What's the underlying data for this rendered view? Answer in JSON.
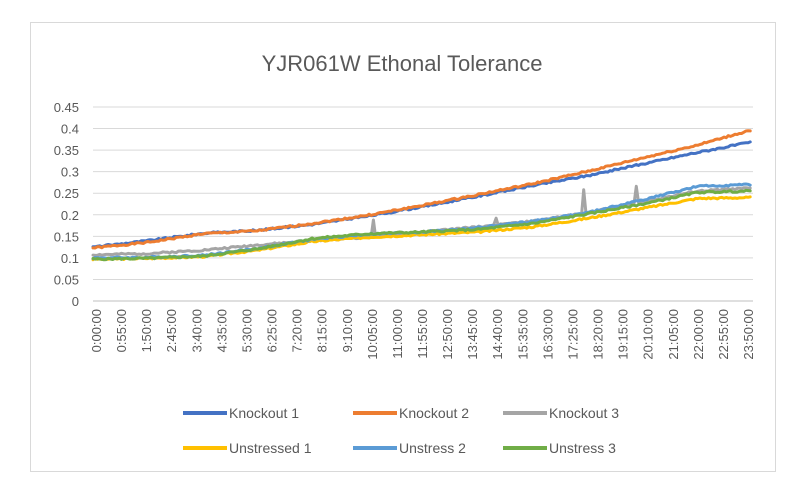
{
  "chart_data": {
    "type": "line",
    "title": "YJR061W Ethonal Tolerance",
    "xlabel": "",
    "ylabel": "",
    "ylim": [
      0,
      0.45
    ],
    "y_ticks": [
      "0",
      "0.05",
      "0.1",
      "0.15",
      "0.2",
      "0.25",
      "0.3",
      "0.35",
      "0.4",
      "0.45"
    ],
    "x_tick_labels": [
      "0:00:00",
      "0:55:00",
      "1:50:00",
      "2:45:00",
      "3:40:00",
      "4:35:00",
      "5:30:00",
      "6:25:00",
      "7:20:00",
      "8:15:00",
      "9:10:00",
      "10:05:00",
      "11:00:00",
      "11:55:00",
      "12:50:00",
      "13:45:00",
      "14:40:00",
      "15:35:00",
      "16:30:00",
      "17:25:00",
      "18:20:00",
      "19:15:00",
      "20:10:00",
      "21:05:00",
      "22:00:00",
      "22:55:00",
      "23:50:00"
    ],
    "x_hours": [
      0,
      2,
      4,
      6,
      8,
      10,
      12,
      14,
      16,
      18,
      20,
      22,
      23.9
    ],
    "grid": "horizontal",
    "legend_position": "bottom",
    "series": [
      {
        "name": "Knockout 1",
        "color": "#4472c4",
        "values": [
          0.125,
          0.14,
          0.157,
          0.164,
          0.178,
          0.197,
          0.219,
          0.243,
          0.268,
          0.291,
          0.318,
          0.345,
          0.368
        ]
      },
      {
        "name": "Knockout 2",
        "color": "#ed7d31",
        "values": [
          0.123,
          0.136,
          0.156,
          0.163,
          0.18,
          0.199,
          0.222,
          0.247,
          0.272,
          0.301,
          0.332,
          0.362,
          0.396
        ]
      },
      {
        "name": "Knockout 3",
        "color": "#a5a5a5",
        "values": [
          0.107,
          0.11,
          0.118,
          0.13,
          0.14,
          0.148,
          0.16,
          0.172,
          0.185,
          0.205,
          0.23,
          0.255,
          0.262
        ]
      },
      {
        "name": "Unstressed 1",
        "color": "#ffc000",
        "values": [
          0.097,
          0.099,
          0.103,
          0.118,
          0.138,
          0.148,
          0.154,
          0.16,
          0.172,
          0.192,
          0.215,
          0.238,
          0.24
        ]
      },
      {
        "name": "Unstress 2",
        "color": "#5b9bd5",
        "values": [
          0.1,
          0.101,
          0.106,
          0.122,
          0.143,
          0.155,
          0.16,
          0.17,
          0.185,
          0.205,
          0.235,
          0.266,
          0.27
        ]
      },
      {
        "name": "Unstress 3",
        "color": "#70ad47",
        "values": [
          0.097,
          0.099,
          0.104,
          0.121,
          0.145,
          0.156,
          0.16,
          0.166,
          0.18,
          0.202,
          0.225,
          0.252,
          0.255
        ]
      }
    ],
    "spikes": [
      {
        "series": "Knockout 3",
        "x_hour": 10.2,
        "value": 0.188
      },
      {
        "series": "Knockout 3",
        "x_hour": 14.65,
        "value": 0.192
      },
      {
        "series": "Knockout 3",
        "x_hour": 17.85,
        "value": 0.258
      },
      {
        "series": "Knockout 3",
        "x_hour": 19.75,
        "value": 0.266
      }
    ]
  }
}
